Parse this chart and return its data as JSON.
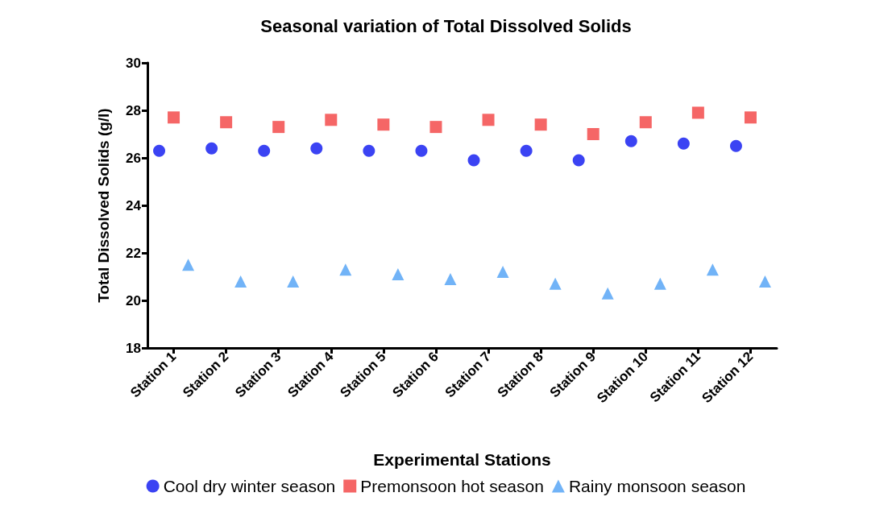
{
  "chart_data": {
    "type": "scatter",
    "title": "Seasonal variation of Total Dissolved Solids",
    "xlabel": "Experimental Stations",
    "ylabel": "Total Dissolved Solids (g/l)",
    "categories": [
      "Station 1",
      "Station 2",
      "Station 3",
      "Station 4",
      "Station 5",
      "Station 6",
      "Station 7",
      "Station 8",
      "Station 9",
      "Station 10",
      "Station 11",
      "Station 12"
    ],
    "series": [
      {
        "name": "Cool dry winter season",
        "color": "#0a14f0",
        "marker": "circle",
        "values": [
          26.3,
          26.4,
          26.3,
          26.4,
          26.3,
          26.3,
          25.9,
          26.3,
          25.9,
          26.7,
          26.6,
          26.5
        ]
      },
      {
        "name": "Premonsoon hot season",
        "color": "#f24040",
        "marker": "square",
        "values": [
          27.7,
          27.5,
          27.3,
          27.6,
          27.4,
          27.3,
          27.6,
          27.4,
          27.0,
          27.5,
          27.9,
          27.7
        ]
      },
      {
        "name": "Rainy monsoon season",
        "color": "#4da0f5",
        "marker": "triangle",
        "values": [
          21.5,
          20.8,
          20.8,
          21.3,
          21.1,
          20.9,
          21.2,
          20.7,
          20.3,
          20.7,
          21.3,
          20.8
        ]
      }
    ],
    "ylim": [
      18,
      30
    ],
    "yticks": [
      18,
      20,
      22,
      24,
      26,
      28,
      30
    ],
    "grid": false,
    "legend": "bottom"
  }
}
